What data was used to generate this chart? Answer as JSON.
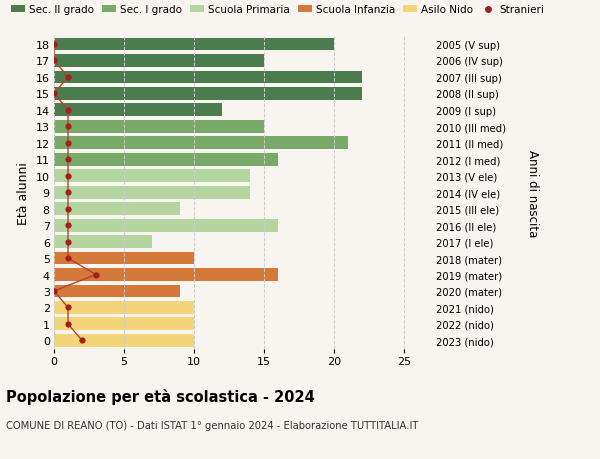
{
  "ages": [
    18,
    17,
    16,
    15,
    14,
    13,
    12,
    11,
    10,
    9,
    8,
    7,
    6,
    5,
    4,
    3,
    2,
    1,
    0
  ],
  "right_labels": [
    "2005 (V sup)",
    "2006 (IV sup)",
    "2007 (III sup)",
    "2008 (II sup)",
    "2009 (I sup)",
    "2010 (III med)",
    "2011 (II med)",
    "2012 (I med)",
    "2013 (V ele)",
    "2014 (IV ele)",
    "2015 (III ele)",
    "2016 (II ele)",
    "2017 (I ele)",
    "2018 (mater)",
    "2019 (mater)",
    "2020 (mater)",
    "2021 (nido)",
    "2022 (nido)",
    "2023 (nido)"
  ],
  "bar_values": [
    20,
    15,
    22,
    22,
    12,
    15,
    21,
    16,
    14,
    14,
    9,
    16,
    7,
    10,
    16,
    9,
    10,
    10,
    10
  ],
  "bar_colors": [
    "#4a7c4e",
    "#4a7c4e",
    "#4a7c4e",
    "#4a7c4e",
    "#4a7c4e",
    "#7aaa6a",
    "#7aaa6a",
    "#7aaa6a",
    "#b5d5a0",
    "#b5d5a0",
    "#b5d5a0",
    "#b5d5a0",
    "#b5d5a0",
    "#d4793a",
    "#d4793a",
    "#d4793a",
    "#f2d479",
    "#f2d479",
    "#f2d479"
  ],
  "stranieri_values": [
    0,
    0,
    1,
    0,
    1,
    1,
    1,
    1,
    1,
    1,
    1,
    1,
    1,
    1,
    3,
    0,
    1,
    1,
    2
  ],
  "title": "Popolazione per età scolastica - 2024",
  "subtitle": "COMUNE DI REANO (TO) - Dati ISTAT 1° gennaio 2024 - Elaborazione TUTTITALIA.IT",
  "ylabel": "Età alunni",
  "right_ylabel": "Anni di nascita",
  "xlim": [
    0,
    27
  ],
  "xticks": [
    0,
    5,
    10,
    15,
    20,
    25
  ],
  "legend_labels": [
    "Sec. II grado",
    "Sec. I grado",
    "Scuola Primaria",
    "Scuola Infanzia",
    "Asilo Nido",
    "Stranieri"
  ],
  "legend_colors": [
    "#4a7c4e",
    "#7aaa6a",
    "#b5d5a0",
    "#d4793a",
    "#f2d479",
    "#a82020"
  ],
  "grid_color": "#cccccc",
  "bg_color": "#f8f4ef",
  "stranieri_color": "#a02020",
  "stranieri_line_color": "#b84030"
}
